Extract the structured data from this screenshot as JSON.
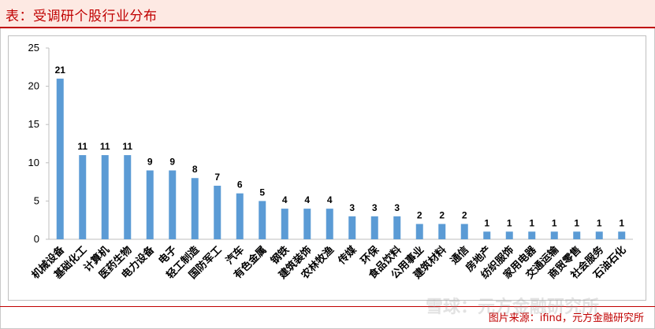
{
  "header": {
    "title": "表：受调研个股行业分布"
  },
  "footer": {
    "source": "图片来源：ifind，元方金融研究所"
  },
  "watermark": {
    "text": "雪球：元方金融研究所"
  },
  "colors": {
    "bar": "#5b9bd5",
    "title": "#c00000",
    "title_bg": "#fde9e3"
  },
  "chart_data": {
    "type": "bar",
    "title": "表：受调研个股行业分布",
    "xlabel": "",
    "ylabel": "",
    "ylim": [
      0,
      25
    ],
    "yticks": [
      0,
      5,
      10,
      15,
      20,
      25
    ],
    "grid": false,
    "legend": "none",
    "categories": [
      "机械设备",
      "基础化工",
      "计算机",
      "医药生物",
      "电力设备",
      "电子",
      "轻工制造",
      "国防军工",
      "汽车",
      "有色金属",
      "钢铁",
      "建筑装饰",
      "农林牧渔",
      "传媒",
      "环保",
      "食品饮料",
      "公用事业",
      "建筑材料",
      "通信",
      "房地产",
      "纺织服饰",
      "家用电器",
      "交通运输",
      "商贸零售",
      "社会服务",
      "石油石化"
    ],
    "values": [
      21,
      11,
      11,
      11,
      9,
      9,
      8,
      7,
      6,
      5,
      4,
      4,
      4,
      3,
      3,
      3,
      2,
      2,
      2,
      1,
      1,
      1,
      1,
      1,
      1,
      1
    ]
  }
}
